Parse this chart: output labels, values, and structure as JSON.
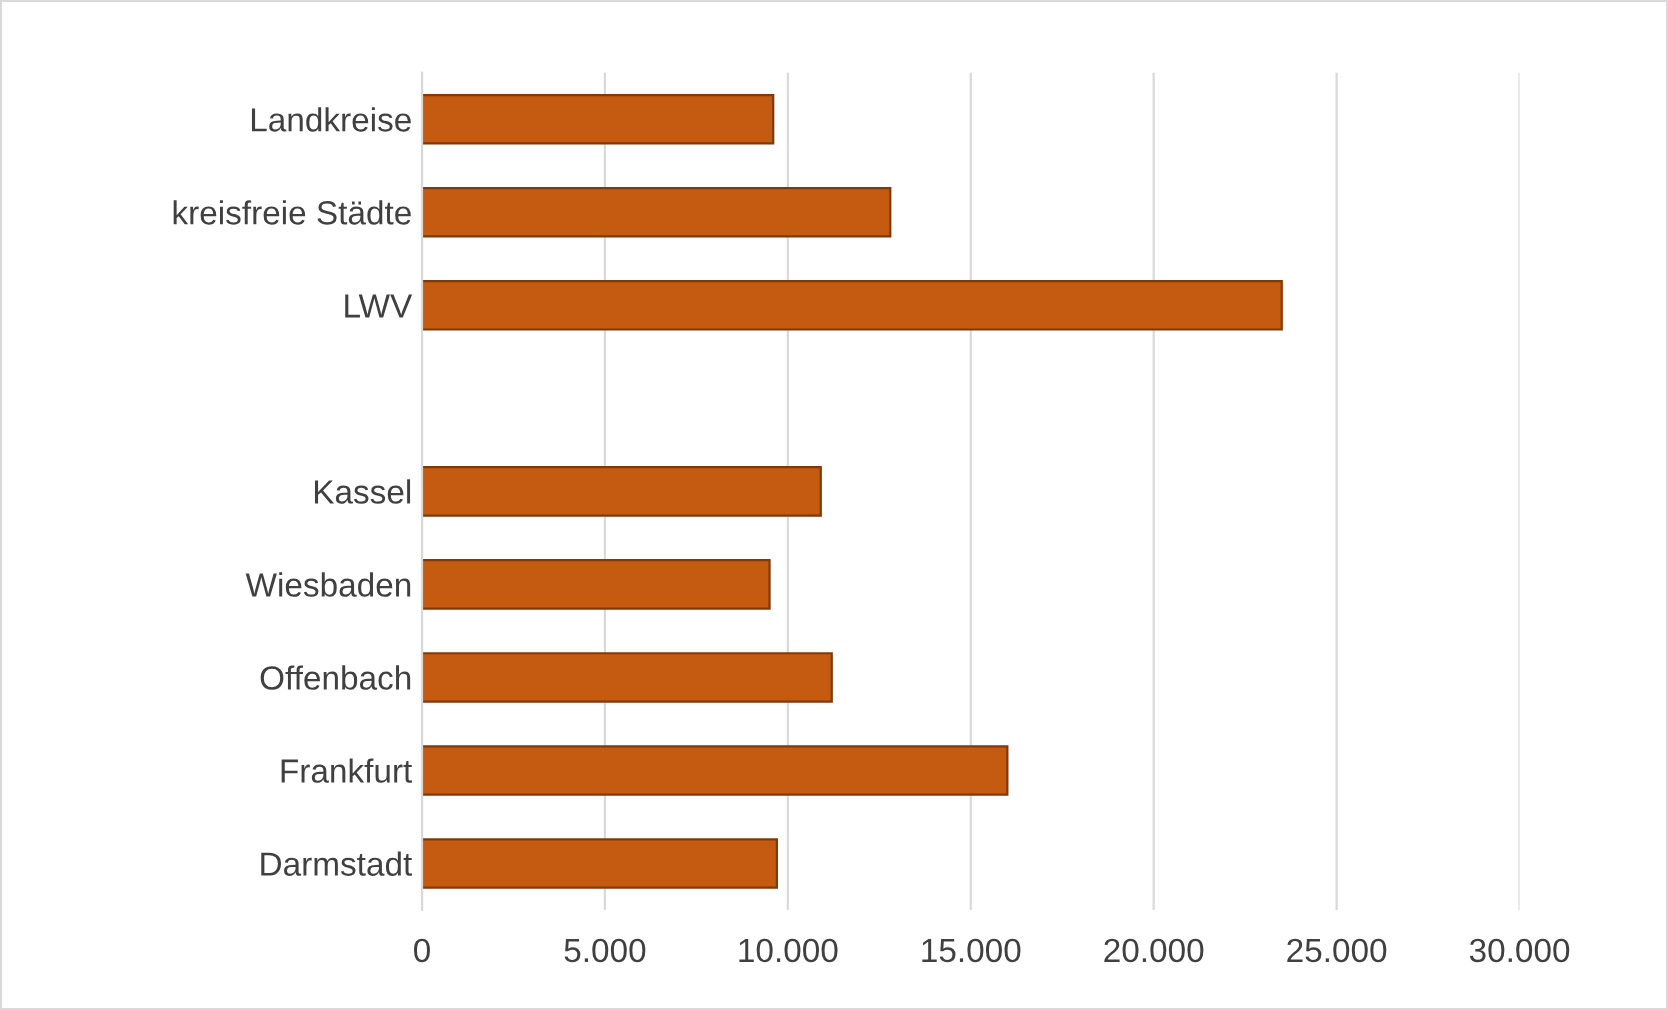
{
  "chart_data": {
    "type": "bar",
    "orientation": "horizontal",
    "categories": [
      "Landkreise",
      "kreisfreie Städte",
      "LWV",
      null,
      "Kassel",
      "Wiesbaden",
      "Offenbach",
      "Frankfurt",
      "Darmstadt"
    ],
    "values": [
      9600,
      12800,
      23500,
      null,
      10900,
      9500,
      11200,
      16000,
      9700
    ],
    "color": "#c55a11",
    "xlim": [
      0,
      30000
    ],
    "xticks": [
      0,
      {
        "value": 5000,
        "label": "5.000"
      },
      {
        "value": 10000,
        "label": "10.000"
      },
      {
        "value": 15000,
        "label": "15.000"
      },
      {
        "value": 20000,
        "label": "20.000"
      },
      {
        "value": 25000,
        "label": "25.000"
      },
      {
        "value": 30000,
        "label": "30.000"
      }
    ],
    "grid": "x",
    "legend": false
  }
}
